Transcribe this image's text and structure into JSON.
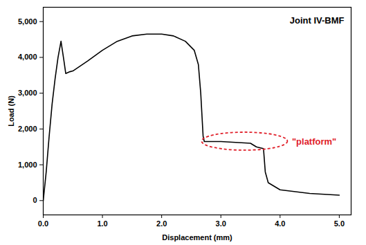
{
  "chart_data": {
    "type": "line",
    "title": "Joint IV-BMF",
    "x_label": "Displacement (mm)",
    "y_label": "Load (N)",
    "x": [
      0,
      0.05,
      0.1,
      0.15,
      0.2,
      0.25,
      0.3,
      0.35,
      0.38,
      0.45,
      0.5,
      0.75,
      1,
      1.25,
      1.5,
      1.75,
      2,
      2.2,
      2.4,
      2.55,
      2.62,
      2.66,
      2.7,
      2.72,
      3,
      3.5,
      3.6,
      3.72,
      3.75,
      3.8,
      4,
      4.5,
      5
    ],
    "series": [
      {
        "name": "Joint IV-BMF",
        "color": "#000000",
        "values": [
          0,
          800,
          1800,
          2700,
          3400,
          4000,
          4450,
          3900,
          3550,
          3600,
          3620,
          3900,
          4200,
          4450,
          4600,
          4650,
          4650,
          4600,
          4450,
          4200,
          3800,
          3000,
          1800,
          1650,
          1650,
          1600,
          1500,
          1450,
          800,
          500,
          300,
          200,
          150
        ]
      }
    ],
    "xlim": [
      0,
      5.2
    ],
    "ylim": [
      -400,
      5400
    ],
    "xticks": [
      0,
      1,
      2,
      3,
      4,
      5
    ],
    "yticks": [
      0,
      1000,
      2000,
      3000,
      4000,
      5000
    ],
    "grid": false,
    "annotations": [
      {
        "text": "\"platform\"",
        "x": 4.2,
        "y": 1650,
        "color": "#e0202a"
      }
    ]
  }
}
